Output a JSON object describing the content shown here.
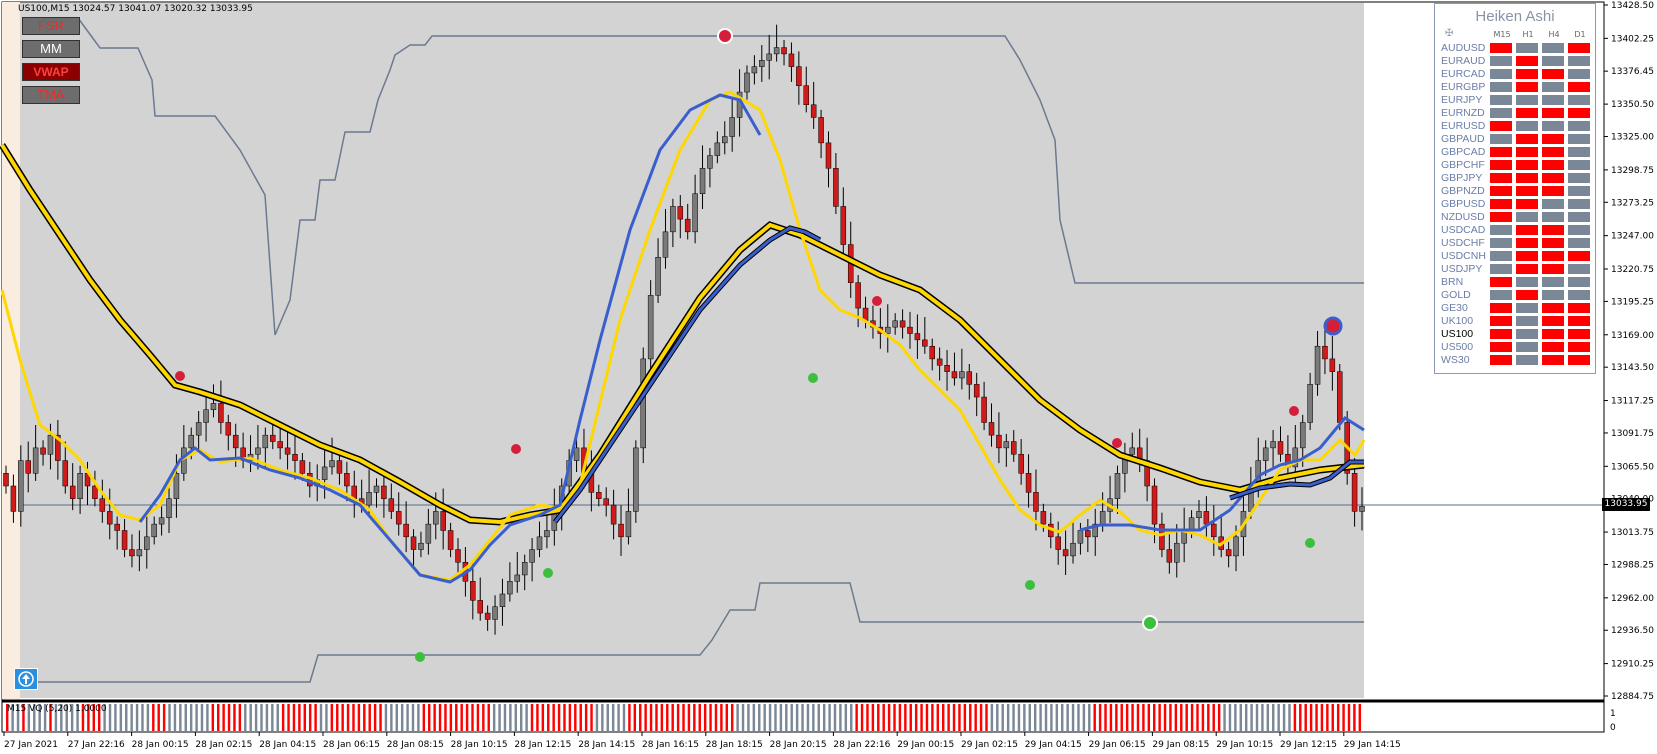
{
  "window": {
    "symbol": "US100,M15",
    "ohlc": "13024.57 13041.07 13020.32 13033.95"
  },
  "toolbar_buttons": [
    {
      "label": "FSR"
    },
    {
      "label": "MM"
    },
    {
      "label": "VWAP"
    },
    {
      "label": "TMA"
    }
  ],
  "price_axis": {
    "ticks": [
      "13428.50",
      "13402.25",
      "13376.45",
      "13350.50",
      "13325.00",
      "13298.75",
      "13273.25",
      "13247.00",
      "13220.75",
      "13195.25",
      "13169.00",
      "13143.50",
      "13117.25",
      "13091.75",
      "13065.50",
      "13040.00",
      "13013.75",
      "12988.25",
      "12962.00",
      "12936.50",
      "12910.25",
      "12884.75"
    ],
    "current_price": "13033.95"
  },
  "time_axis": {
    "ticks": [
      "27 Jan 2021",
      "27 Jan 22:16",
      "28 Jan 00:15",
      "28 Jan 02:15",
      "28 Jan 04:15",
      "28 Jan 06:15",
      "28 Jan 08:15",
      "28 Jan 10:15",
      "28 Jan 12:15",
      "28 Jan 14:15",
      "28 Jan 16:15",
      "28 Jan 18:15",
      "28 Jan 20:15",
      "28 Jan 22:16",
      "29 Jan 00:15",
      "29 Jan 02:15",
      "29 Jan 04:15",
      "29 Jan 06:15",
      "29 Jan 08:15",
      "29 Jan 10:15",
      "29 Jan 12:15",
      "29 Jan 14:15"
    ]
  },
  "indicator": {
    "label": "M15 VQ (5,20) 1.0000",
    "scale_top": "1",
    "scale_bottom": "0",
    "bars": "RGGRGGGGRGGGGGRRRRGGGGGGGGGRRRGGGGGGGGRRRRRRGGGGGGGRRRRRRRGGRRRRRRRRRRGGGGGGGRRRRRRRRRRRRRGGGGGGGRRRRRRRRRRRRGGGGGGRRRRRRRRRRRRRRRRRRRRGGGGGGGGGGGGGGGGGGGGGGRRRRRRRRRRRRRRRRRRRRRRRRRGGGGGGGGGGGGGGGGGGGRRRRRRRRRRRRRRRRRRRRRRRRGGGGGGGGGGGGGRRRRRRRRRRRRR"
  },
  "heiken_ashi": {
    "title": "Heiken Ashi",
    "timeframes": [
      "M15",
      "H1",
      "H4",
      "D1"
    ],
    "rows": [
      {
        "pair": "AUDUSD",
        "cells": [
          "r",
          "g",
          "g",
          "r"
        ]
      },
      {
        "pair": "EURAUD",
        "cells": [
          "g",
          "r",
          "g",
          "g"
        ]
      },
      {
        "pair": "EURCAD",
        "cells": [
          "g",
          "r",
          "r",
          "g"
        ]
      },
      {
        "pair": "EURGBP",
        "cells": [
          "g",
          "r",
          "g",
          "r"
        ]
      },
      {
        "pair": "EURJPY",
        "cells": [
          "g",
          "g",
          "g",
          "g"
        ]
      },
      {
        "pair": "EURNZD",
        "cells": [
          "g",
          "r",
          "r",
          "r"
        ]
      },
      {
        "pair": "EURUSD",
        "cells": [
          "r",
          "g",
          "g",
          "g"
        ]
      },
      {
        "pair": "GBPAUD",
        "cells": [
          "g",
          "r",
          "r",
          "g"
        ]
      },
      {
        "pair": "GBPCAD",
        "cells": [
          "r",
          "r",
          "r",
          "g"
        ]
      },
      {
        "pair": "GBPCHF",
        "cells": [
          "r",
          "r",
          "r",
          "g"
        ]
      },
      {
        "pair": "GBPJPY",
        "cells": [
          "r",
          "r",
          "r",
          "g"
        ]
      },
      {
        "pair": "GBPNZD",
        "cells": [
          "r",
          "r",
          "r",
          "g"
        ]
      },
      {
        "pair": "GBPUSD",
        "cells": [
          "r",
          "r",
          "g",
          "g"
        ]
      },
      {
        "pair": "NZDUSD",
        "cells": [
          "r",
          "g",
          "g",
          "g"
        ]
      },
      {
        "pair": "USDCAD",
        "cells": [
          "g",
          "r",
          "r",
          "g"
        ]
      },
      {
        "pair": "USDCHF",
        "cells": [
          "g",
          "r",
          "r",
          "g"
        ]
      },
      {
        "pair": "USDCNH",
        "cells": [
          "g",
          "r",
          "r",
          "r"
        ]
      },
      {
        "pair": "USDJPY",
        "cells": [
          "g",
          "r",
          "r",
          "g"
        ]
      },
      {
        "pair": "BRN",
        "cells": [
          "r",
          "g",
          "g",
          "g"
        ]
      },
      {
        "pair": "GOLD",
        "cells": [
          "g",
          "r",
          "g",
          "g"
        ]
      },
      {
        "pair": "GE30",
        "cells": [
          "r",
          "g",
          "r",
          "r"
        ]
      },
      {
        "pair": "UK100",
        "cells": [
          "r",
          "g",
          "r",
          "r"
        ]
      },
      {
        "pair": "US100",
        "cells": [
          "r",
          "g",
          "r",
          "r"
        ]
      },
      {
        "pair": "US500",
        "cells": [
          "r",
          "g",
          "r",
          "r"
        ]
      },
      {
        "pair": "WS30",
        "cells": [
          "r",
          "g",
          "r",
          "r"
        ]
      }
    ],
    "active_pair": "US100"
  },
  "colors": {
    "chart_bg": "#d3d3d3",
    "bull_candle": "#7a7a7a",
    "bear_candle": "#d11a1a",
    "yellow_ma": "#ffd700",
    "blue_ma": "#3a5fcd",
    "envelope": "#6b7a8f",
    "signal_top": "#d41f3a",
    "signal_bottom": "#3cbf3c"
  },
  "chart_data": {
    "type": "candlestick",
    "x_unit": "bar index (M15)",
    "ylim": [
      12884.75,
      13428.5
    ],
    "close_series": [
      13050,
      13030,
      13070,
      13060,
      13080,
      13075,
      13090,
      13070,
      13050,
      13040,
      13060,
      13050,
      13040,
      13030,
      13020,
      13015,
      13000,
      12995,
      13000,
      13010,
      13020,
      13025,
      13040,
      13060,
      13080,
      13090,
      13100,
      13110,
      13115,
      13100,
      13090,
      13080,
      13070,
      13075,
      13080,
      13090,
      13085,
      13080,
      13075,
      13070,
      13060,
      13050,
      13055,
      13065,
      13070,
      13060,
      13050,
      13040,
      13035,
      13045,
      13050,
      13040,
      13030,
      13020,
      13010,
      13000,
      13005,
      13020,
      13030,
      13015,
      13000,
      12990,
      12975,
      12960,
      12950,
      12945,
      12955,
      12965,
      12975,
      12980,
      12990,
      13000,
      13010,
      13015,
      13030,
      13050,
      13070,
      13080,
      13060,
      13045,
      13040,
      13035,
      13020,
      13010,
      13030,
      13080,
      13150,
      13200,
      13230,
      13250,
      13270,
      13260,
      13250,
      13280,
      13300,
      13310,
      13320,
      13325,
      13340,
      13360,
      13375,
      13380,
      13385,
      13390,
      13395,
      13390,
      13380,
      13365,
      13350,
      13340,
      13320,
      13300,
      13270,
      13240,
      13210,
      13190,
      13180,
      13175,
      13170,
      13175,
      13180,
      13175,
      13170,
      13165,
      13160,
      13150,
      13145,
      13140,
      13135,
      13140,
      13130,
      13120,
      13100,
      13090,
      13080,
      13085,
      13075,
      13060,
      13045,
      13030,
      13020,
      13010,
      13000,
      12995,
      13005,
      13015,
      13010,
      13020,
      13030,
      13040,
      13060,
      13075,
      13080,
      13070,
      13050,
      13020,
      13000,
      12990,
      13005,
      13015,
      13025,
      13030,
      13020,
      13010,
      13000,
      12995,
      13010,
      13030,
      13050,
      13070,
      13080,
      13085,
      13075,
      13065,
      13080,
      13100,
      13130,
      13160,
      13150,
      13140,
      13100,
      13060,
      13030,
      13034
    ]
  }
}
